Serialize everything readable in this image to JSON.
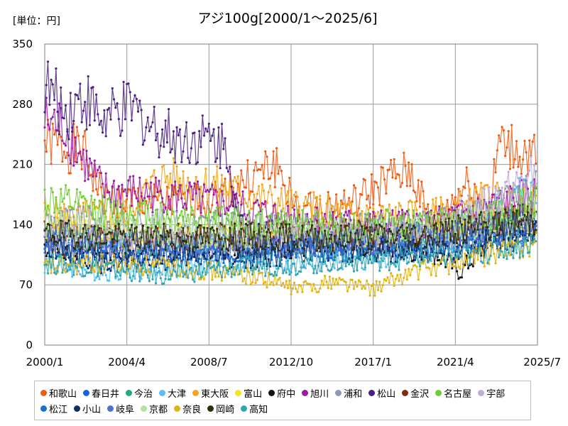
{
  "chart_data": {
    "type": "line",
    "title": "アジ100g[2000/1～2025/6]",
    "unit_label": "[単位：円]",
    "x_ticks": [
      "2000/1",
      "2004/4",
      "2008/7",
      "2012/10",
      "2017/1",
      "2021/4",
      "2025/7"
    ],
    "y_ticks": [
      "0",
      "70",
      "140",
      "210",
      "280",
      "350"
    ],
    "xlim": [
      "2000/1",
      "2025/7"
    ],
    "ylim": [
      0,
      350
    ],
    "grid": true,
    "legend_position": "bottom",
    "series": [
      {
        "name": "和歌山",
        "color": "#f25a13",
        "keypoints": [
          [
            2000.0,
            235
          ],
          [
            2002.0,
            225
          ],
          [
            2003.0,
            170
          ],
          [
            2006.0,
            165
          ],
          [
            2008.5,
            170
          ],
          [
            2010.0,
            185
          ],
          [
            2012.0,
            210
          ],
          [
            2013.0,
            155
          ],
          [
            2016.0,
            165
          ],
          [
            2018.0,
            195
          ],
          [
            2019.0,
            200
          ],
          [
            2020.0,
            140
          ],
          [
            2022.0,
            190
          ],
          [
            2023.0,
            150
          ],
          [
            2023.5,
            235
          ],
          [
            2025.5,
            215
          ]
        ]
      },
      {
        "name": "春日井",
        "color": "#1464e6",
        "keypoints": [
          [
            2000.0,
            130
          ],
          [
            2003.0,
            115
          ],
          [
            2006.0,
            110
          ],
          [
            2010.0,
            115
          ],
          [
            2014.0,
            115
          ],
          [
            2018.0,
            120
          ],
          [
            2022.0,
            120
          ],
          [
            2025.5,
            145
          ]
        ]
      },
      {
        "name": "今治",
        "color": "#1eab82",
        "keypoints": [
          [
            2000.0,
            120
          ],
          [
            2004.0,
            120
          ],
          [
            2008.0,
            115
          ],
          [
            2012.0,
            120
          ],
          [
            2016.0,
            125
          ],
          [
            2020.0,
            130
          ],
          [
            2023.0,
            145
          ],
          [
            2025.5,
            150
          ]
        ]
      },
      {
        "name": "大津",
        "color": "#5bc0ee",
        "keypoints": [
          [
            2000.0,
            95
          ],
          [
            2003.0,
            85
          ],
          [
            2007.0,
            90
          ],
          [
            2010.0,
            95
          ],
          [
            2014.0,
            95
          ],
          [
            2017.0,
            100
          ],
          [
            2020.0,
            110
          ],
          [
            2023.0,
            150
          ],
          [
            2024.5,
            175
          ],
          [
            2025.5,
            170
          ]
        ]
      },
      {
        "name": "東大阪",
        "color": "#f2a71b",
        "keypoints": [
          [
            2000.0,
            150
          ],
          [
            2004.0,
            150
          ],
          [
            2006.0,
            195
          ],
          [
            2009.0,
            185
          ],
          [
            2012.0,
            165
          ],
          [
            2016.0,
            150
          ],
          [
            2020.0,
            150
          ],
          [
            2023.0,
            170
          ],
          [
            2025.5,
            165
          ]
        ]
      },
      {
        "name": "富山",
        "color": "#f5e31c",
        "keypoints": [
          [
            2000.0,
            140
          ],
          [
            2004.0,
            130
          ],
          [
            2008.0,
            125
          ],
          [
            2012.0,
            130
          ],
          [
            2016.0,
            125
          ],
          [
            2020.0,
            130
          ],
          [
            2023.0,
            140
          ],
          [
            2025.5,
            150
          ]
        ]
      },
      {
        "name": "府中",
        "color": "#111111",
        "keypoints": [
          [
            2000.0,
            115
          ],
          [
            2004.0,
            110
          ],
          [
            2008.0,
            115
          ],
          [
            2012.0,
            115
          ],
          [
            2016.0,
            115
          ],
          [
            2020.0,
            110
          ],
          [
            2021.5,
            85
          ],
          [
            2023.0,
            120
          ],
          [
            2025.5,
            140
          ]
        ]
      },
      {
        "name": "旭川",
        "color": "#9b1aa6",
        "keypoints": [
          [
            2000.0,
            260
          ],
          [
            2001.0,
            255
          ],
          [
            2002.0,
            215
          ],
          [
            2003.0,
            180
          ],
          [
            2006.0,
            175
          ],
          [
            2009.0,
            165
          ],
          [
            2012.0,
            150
          ],
          [
            2016.0,
            140
          ],
          [
            2020.0,
            140
          ],
          [
            2023.0,
            160
          ],
          [
            2025.5,
            175
          ]
        ]
      },
      {
        "name": "浦和",
        "color": "#8c9bb0",
        "keypoints": [
          [
            2000.0,
            145
          ],
          [
            2004.0,
            140
          ],
          [
            2008.0,
            140
          ],
          [
            2012.0,
            135
          ],
          [
            2016.0,
            135
          ],
          [
            2020.0,
            140
          ],
          [
            2023.0,
            155
          ],
          [
            2025.5,
            180
          ]
        ]
      },
      {
        "name": "松山",
        "color": "#4a2080",
        "keypoints": [
          [
            2000.0,
            305
          ],
          [
            2001.0,
            270
          ],
          [
            2002.0,
            290
          ],
          [
            2003.0,
            260
          ],
          [
            2004.5,
            275
          ],
          [
            2005.5,
            255
          ],
          [
            2007.0,
            240
          ],
          [
            2008.5,
            240
          ],
          [
            2009.5,
            230
          ],
          [
            2010.0,
            140
          ],
          [
            2014.0,
            125
          ],
          [
            2018.0,
            125
          ],
          [
            2022.0,
            130
          ],
          [
            2025.5,
            150
          ]
        ]
      },
      {
        "name": "金沢",
        "color": "#7a2e14",
        "keypoints": [
          [
            2000.0,
            130
          ],
          [
            2004.0,
            125
          ],
          [
            2008.0,
            125
          ],
          [
            2012.0,
            130
          ],
          [
            2016.0,
            130
          ],
          [
            2020.0,
            135
          ],
          [
            2025.5,
            150
          ]
        ]
      },
      {
        "name": "名古屋",
        "color": "#6ecf32",
        "keypoints": [
          [
            2000.0,
            170
          ],
          [
            2003.0,
            155
          ],
          [
            2007.0,
            150
          ],
          [
            2011.0,
            140
          ],
          [
            2015.0,
            140
          ],
          [
            2019.0,
            140
          ],
          [
            2023.0,
            150
          ],
          [
            2025.5,
            165
          ]
        ]
      },
      {
        "name": "宇部",
        "color": "#c3acd9",
        "keypoints": [
          [
            2000.0,
            125
          ],
          [
            2004.0,
            120
          ],
          [
            2008.0,
            120
          ],
          [
            2012.0,
            125
          ],
          [
            2016.0,
            125
          ],
          [
            2020.0,
            130
          ],
          [
            2024.0,
            180
          ],
          [
            2025.5,
            200
          ]
        ]
      },
      {
        "name": "松江",
        "color": "#1c6fd6",
        "keypoints": [
          [
            2000.0,
            110
          ],
          [
            2004.0,
            105
          ],
          [
            2008.0,
            105
          ],
          [
            2012.0,
            110
          ],
          [
            2016.0,
            110
          ],
          [
            2020.0,
            115
          ],
          [
            2025.5,
            135
          ]
        ]
      },
      {
        "name": "小山",
        "color": "#0f2f6b",
        "keypoints": [
          [
            2000.0,
            120
          ],
          [
            2003.0,
            95
          ],
          [
            2006.0,
            100
          ],
          [
            2010.0,
            100
          ],
          [
            2014.0,
            110
          ],
          [
            2018.0,
            110
          ],
          [
            2022.0,
            115
          ],
          [
            2025.5,
            130
          ]
        ]
      },
      {
        "name": "岐阜",
        "color": "#4b70d1",
        "keypoints": [
          [
            2000.0,
            125
          ],
          [
            2004.0,
            120
          ],
          [
            2008.0,
            115
          ],
          [
            2012.0,
            115
          ],
          [
            2016.0,
            120
          ],
          [
            2020.0,
            125
          ],
          [
            2025.5,
            140
          ]
        ]
      },
      {
        "name": "京都",
        "color": "#b4e3a0",
        "keypoints": [
          [
            2000.0,
            140
          ],
          [
            2004.0,
            135
          ],
          [
            2008.0,
            130
          ],
          [
            2012.0,
            130
          ],
          [
            2016.0,
            130
          ],
          [
            2020.0,
            135
          ],
          [
            2025.5,
            150
          ]
        ]
      },
      {
        "name": "奈良",
        "color": "#e0b515",
        "keypoints": [
          [
            2000.0,
            90
          ],
          [
            2003.0,
            95
          ],
          [
            2007.0,
            90
          ],
          [
            2011.0,
            80
          ],
          [
            2013.0,
            65
          ],
          [
            2015.0,
            75
          ],
          [
            2017.0,
            65
          ],
          [
            2019.0,
            85
          ],
          [
            2022.0,
            100
          ],
          [
            2025.5,
            120
          ]
        ]
      },
      {
        "name": "岡崎",
        "color": "#2e2e12",
        "keypoints": [
          [
            2000.0,
            130
          ],
          [
            2004.0,
            125
          ],
          [
            2008.0,
            125
          ],
          [
            2012.0,
            125
          ],
          [
            2016.0,
            125
          ],
          [
            2020.0,
            130
          ],
          [
            2025.5,
            145
          ]
        ]
      },
      {
        "name": "高知",
        "color": "#2fa7b0",
        "keypoints": [
          [
            2000.0,
            95
          ],
          [
            2003.0,
            90
          ],
          [
            2006.0,
            80
          ],
          [
            2010.0,
            90
          ],
          [
            2014.0,
            95
          ],
          [
            2018.0,
            100
          ],
          [
            2022.0,
            105
          ],
          [
            2025.5,
            120
          ]
        ]
      }
    ]
  }
}
